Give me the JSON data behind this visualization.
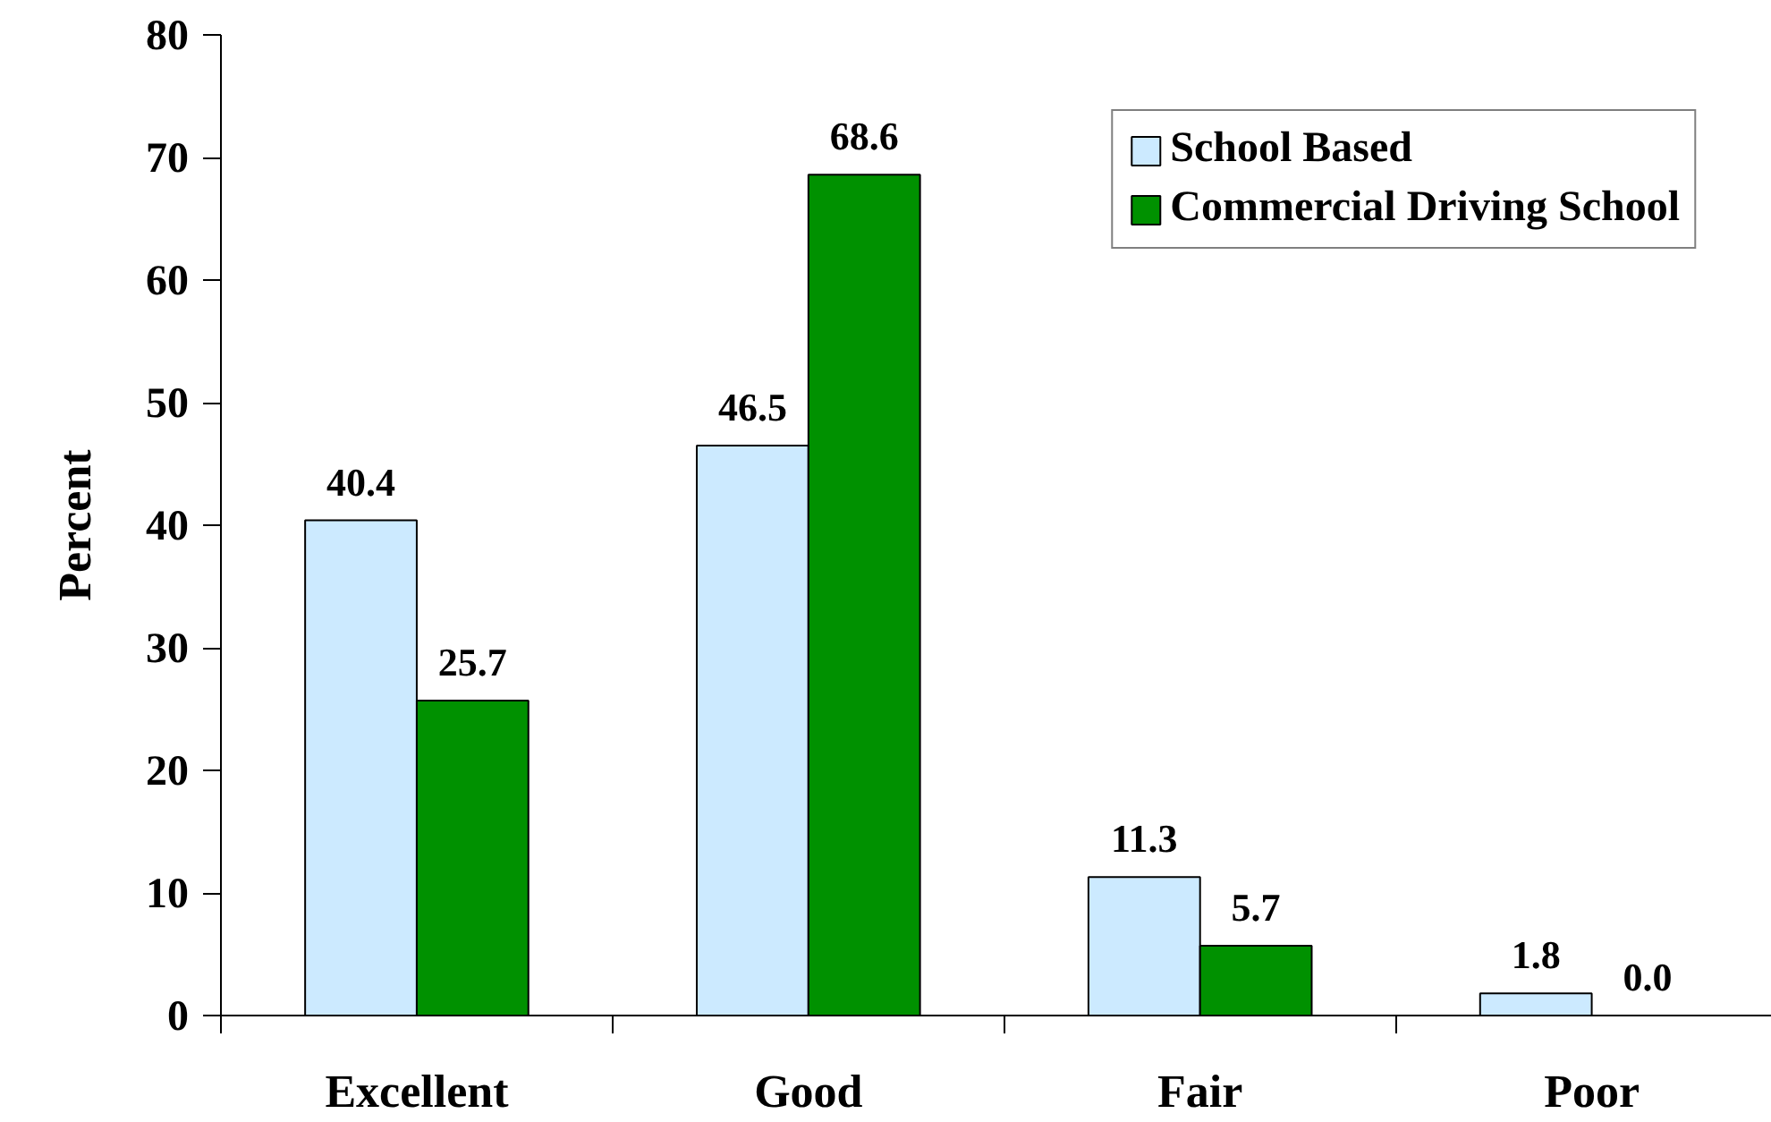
{
  "chart_data": {
    "type": "bar",
    "categories": [
      "Excellent",
      "Good",
      "Fair",
      "Poor"
    ],
    "ylabel": "Percent",
    "ylim": [
      0,
      80
    ],
    "yticks": [
      0,
      10,
      20,
      30,
      40,
      50,
      60,
      70,
      80
    ],
    "grid": false,
    "legend": "top right",
    "series": [
      {
        "name": "School Based",
        "color": "#cceaff",
        "values": [
          40.4,
          46.5,
          11.3,
          1.8
        ],
        "value_labels": [
          "40.4",
          "46.5",
          "11.3",
          "1.8"
        ]
      },
      {
        "name": "Commercial Driving School",
        "color": "#009100",
        "values": [
          25.7,
          68.6,
          5.7,
          0.0
        ],
        "value_labels": [
          "25.7",
          "68.6",
          "5.7",
          "0.0"
        ]
      }
    ]
  }
}
